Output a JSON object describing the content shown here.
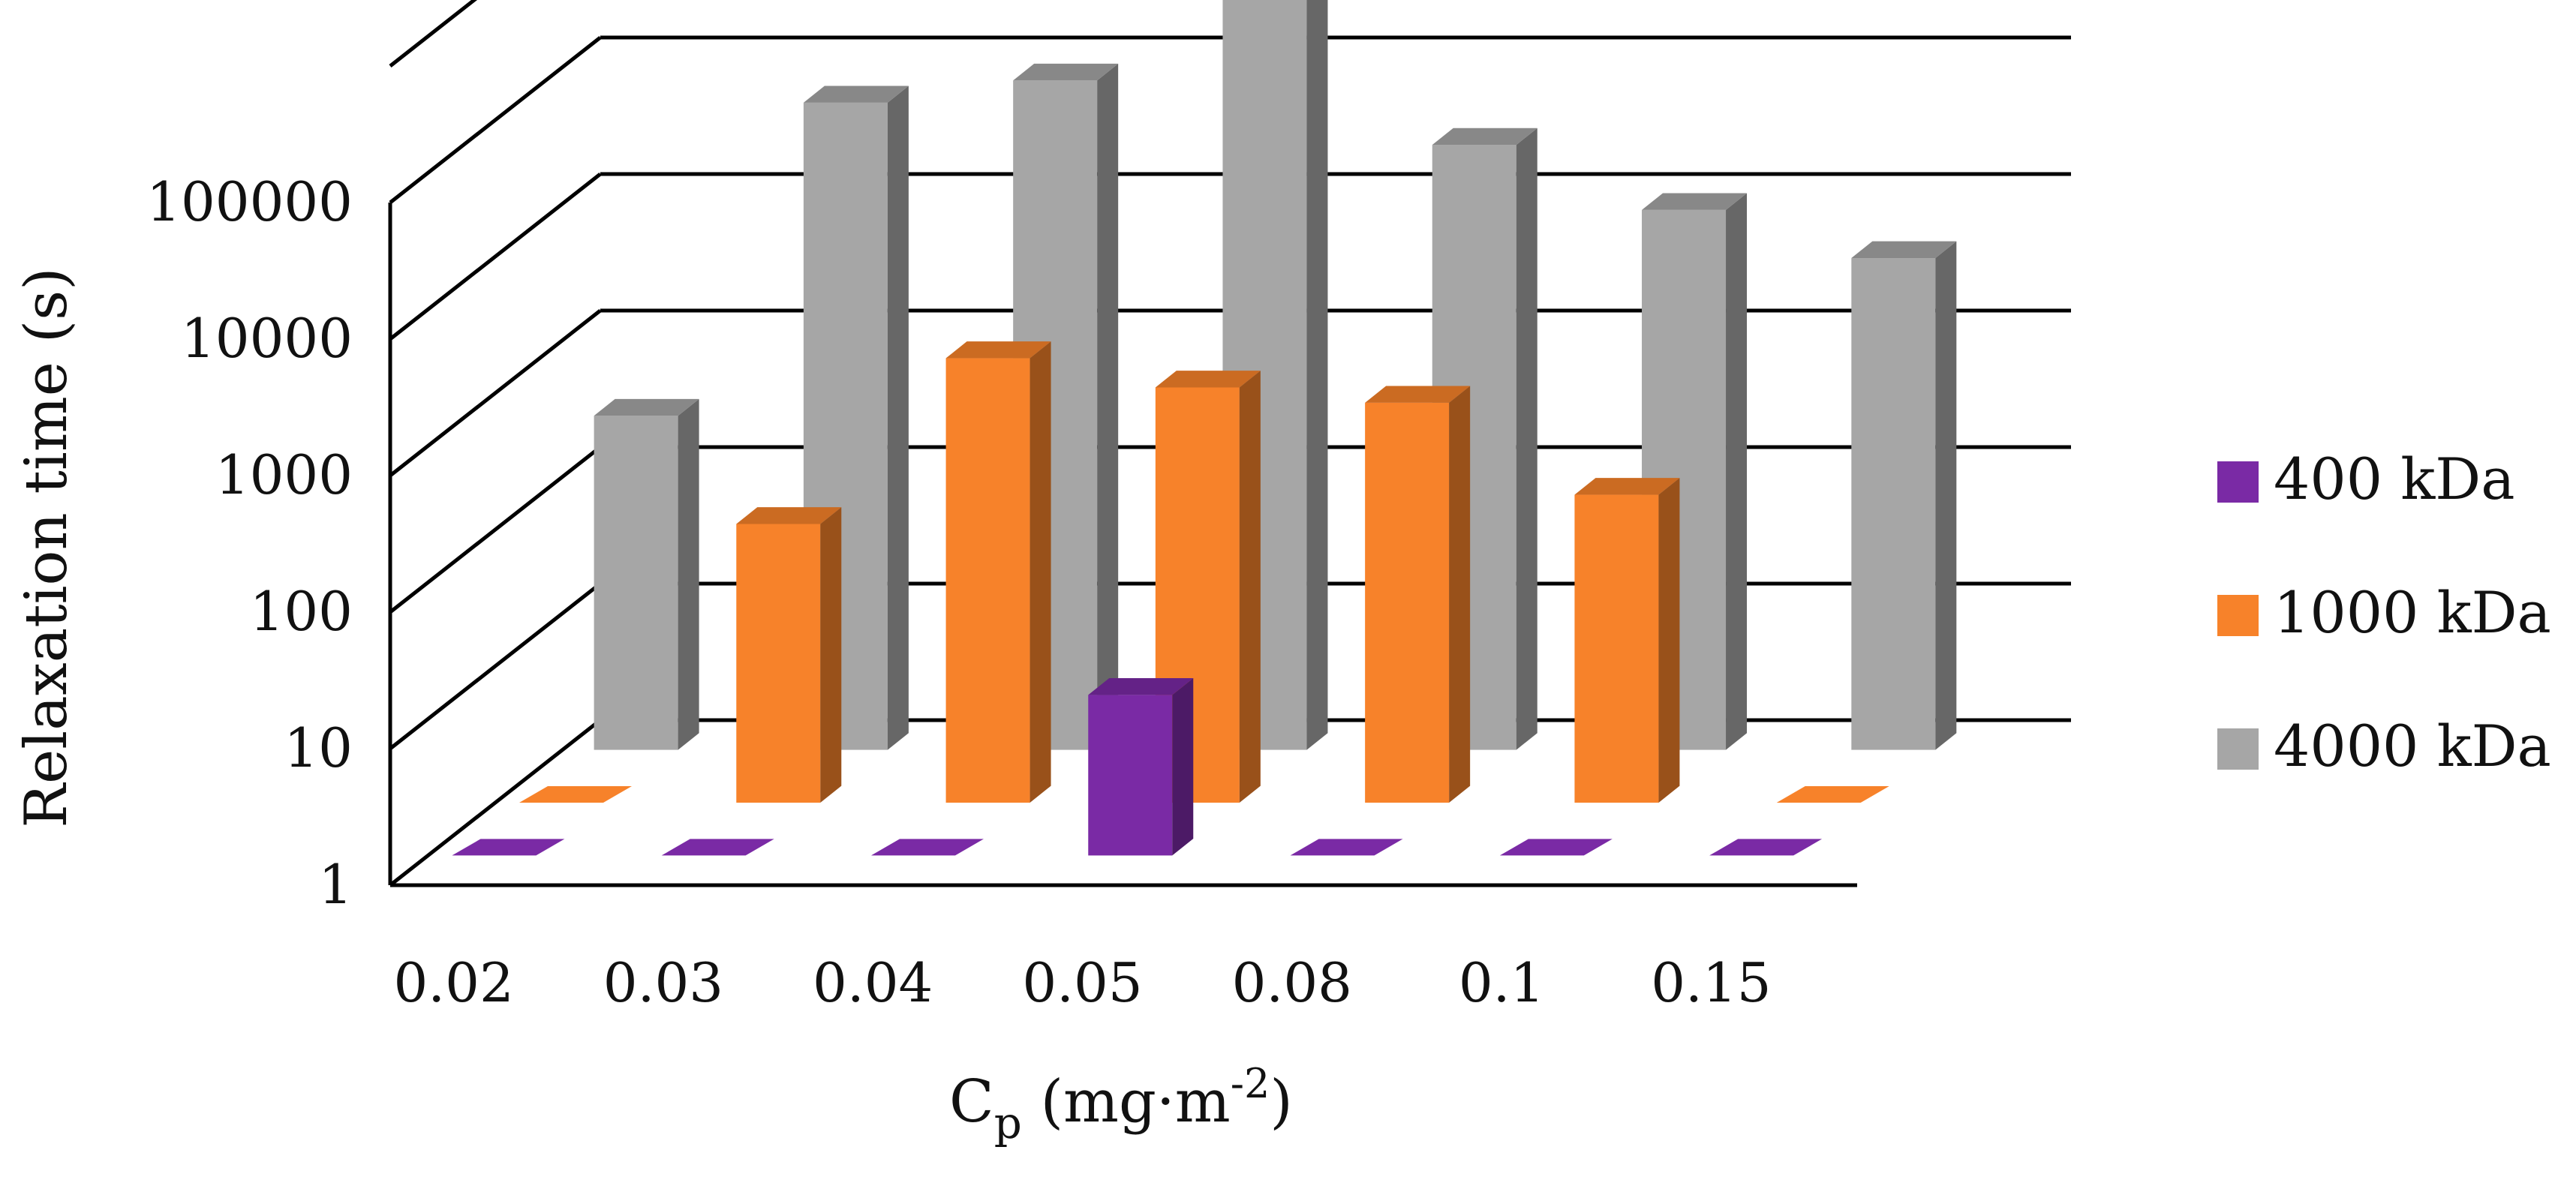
{
  "chart_data": {
    "type": "bar",
    "subtype": "3d-clustered-column",
    "ylabel": "Relaxation time (s)",
    "xlabel_main": "C",
    "xlabel_sub": "p",
    "xlabel_rest": " (mg·m",
    "xlabel_exp": "-2",
    "xlabel_end": ")",
    "yscale": "log",
    "ylim": [
      1,
      1000000
    ],
    "yticks": [
      "1",
      "10",
      "100",
      "1000",
      "10000",
      "100000"
    ],
    "yticks_values": [
      1,
      10,
      100,
      1000,
      10000,
      100000
    ],
    "categories": [
      "0.02",
      "0.03",
      "0.04",
      "0.05",
      "0.08",
      "0.1",
      "0.15"
    ],
    "series": [
      {
        "name": "400 kDa",
        "color": "#7a2aa5",
        "values": [
          1,
          1,
          1,
          15,
          1,
          1,
          1
        ]
      },
      {
        "name": "1000 kDa",
        "color": "#f7822a",
        "values": [
          1,
          110,
          1800,
          1100,
          850,
          180,
          1
        ]
      },
      {
        "name": "4000 kDa",
        "color": "#a6a6a6",
        "values": [
          280,
          55000,
          80000,
          400000,
          27000,
          9000,
          4000
        ]
      }
    ],
    "legend": [
      "400 kDa",
      "1000 kDa",
      "4000 kDa"
    ],
    "legend_position": "right",
    "grid": true
  }
}
